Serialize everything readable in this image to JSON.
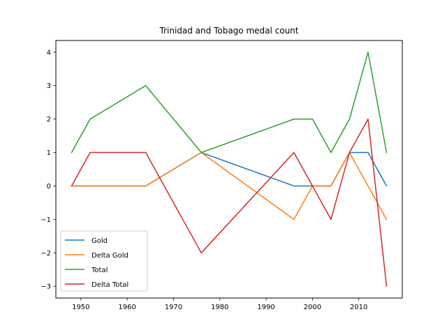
{
  "chart_data": {
    "type": "line",
    "title": "Trinidad and Tobago medal count",
    "xlabel": "",
    "ylabel": "",
    "xlim": [
      1944.6,
      2019.4
    ],
    "ylim": [
      -3.35,
      4.35
    ],
    "x_ticks": [
      1950,
      1960,
      1970,
      1980,
      1990,
      2000,
      2010
    ],
    "y_ticks": [
      -3,
      -2,
      -1,
      0,
      1,
      2,
      3,
      4
    ],
    "x_tick_labels": [
      "1950",
      "1960",
      "1970",
      "1980",
      "1990",
      "2000",
      "2010"
    ],
    "y_tick_labels": [
      "−3",
      "−2",
      "−1",
      "0",
      "1",
      "2",
      "3",
      "4"
    ],
    "x": [
      1948,
      1952,
      1964,
      1976,
      1996,
      2000,
      2004,
      2008,
      2012,
      2016
    ],
    "series": [
      {
        "name": "Gold",
        "color": "#1f77b4",
        "values": [
          0,
          0,
          0,
          1,
          0,
          0,
          0,
          1,
          1,
          0
        ]
      },
      {
        "name": "Delta Gold",
        "color": "#ff7f0e",
        "values": [
          0,
          0,
          0,
          1,
          -1,
          0,
          0,
          1,
          0,
          -1
        ]
      },
      {
        "name": "Total",
        "color": "#2ca02c",
        "values": [
          1,
          2,
          3,
          1,
          2,
          2,
          1,
          2,
          4,
          1
        ]
      },
      {
        "name": "Delta Total",
        "color": "#d62728",
        "values": [
          0,
          1,
          1,
          -2,
          1,
          0,
          -1,
          1,
          2,
          -3
        ]
      }
    ],
    "grid": false,
    "legend_position": "lower-left"
  }
}
